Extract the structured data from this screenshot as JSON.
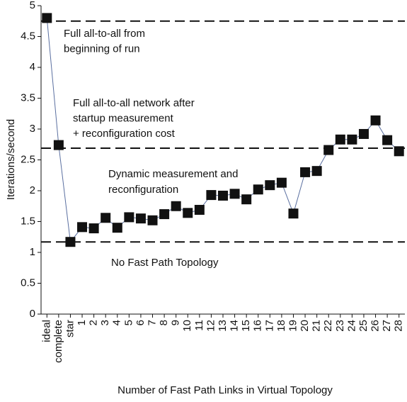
{
  "chart_data": {
    "type": "line",
    "xlabel": "Number of Fast Path Links in Virtual Topology",
    "ylabel": "Iterations/second",
    "categories": [
      "ideal",
      "complete",
      "star",
      "1",
      "2",
      "3",
      "4",
      "5",
      "6",
      "7",
      "8",
      "9",
      "10",
      "11",
      "12",
      "13",
      "14",
      "15",
      "16",
      "17",
      "18",
      "19",
      "20",
      "21",
      "22",
      "23",
      "24",
      "25",
      "26",
      "27",
      "28"
    ],
    "values": [
      4.8,
      2.74,
      1.17,
      1.41,
      1.39,
      1.56,
      1.4,
      1.57,
      1.55,
      1.52,
      1.62,
      1.75,
      1.64,
      1.69,
      1.93,
      1.92,
      1.95,
      1.86,
      2.02,
      2.09,
      2.13,
      1.63,
      2.3,
      2.32,
      2.66,
      2.83,
      2.83,
      2.92,
      3.14,
      2.82,
      2.64
    ],
    "color": "#111111",
    "line_color": "#5a6fa0",
    "ylim": [
      0,
      5
    ],
    "yticks": [
      0,
      0.5,
      1,
      1.5,
      2,
      2.5,
      3,
      3.5,
      4,
      4.5,
      5
    ],
    "reference_lines": [
      {
        "value": 4.75,
        "label": [
          "Full all-to-all from",
          "beginning of run"
        ]
      },
      {
        "value": 2.69,
        "label": [
          "Full all-to-all network after",
          "startup measurement",
          "+ reconfiguration cost"
        ]
      },
      {
        "value": 1.17,
        "label": [
          "No Fast Path Topology"
        ]
      }
    ],
    "annotations": [
      [
        "Dynamic measurement and",
        "reconfiguration"
      ]
    ]
  }
}
